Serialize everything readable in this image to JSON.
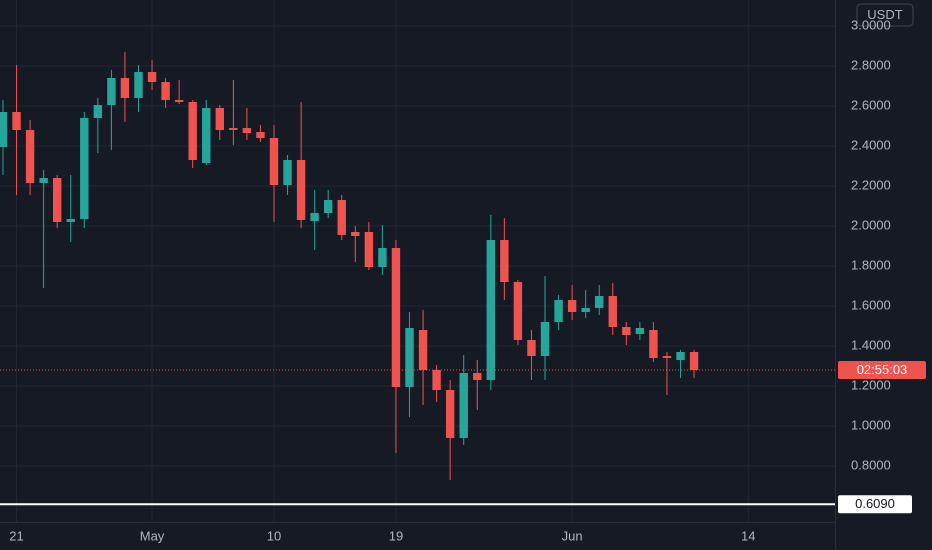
{
  "chart_data": {
    "type": "candlestick",
    "currency": "USDT",
    "countdown": "02:55:03",
    "up_color": "#26a69a",
    "down_color": "#ef5350",
    "x": [
      0,
      1,
      2,
      3,
      4,
      5,
      6,
      7,
      8,
      9,
      10,
      11,
      12,
      13,
      14,
      15,
      16,
      17,
      18,
      19,
      20,
      21,
      22,
      23,
      24,
      25,
      26,
      27,
      28,
      29,
      30,
      31,
      32,
      33,
      34,
      35,
      36,
      37,
      38,
      39,
      40,
      41,
      42,
      43,
      44,
      45,
      46,
      47,
      48,
      49,
      50,
      51
    ],
    "open": [
      2.395,
      2.57,
      2.48,
      2.215,
      2.24,
      2.02,
      2.035,
      2.54,
      2.605,
      2.74,
      2.64,
      2.77,
      2.72,
      2.63,
      2.62,
      2.315,
      2.59,
      2.49,
      2.49,
      2.47,
      2.44,
      2.205,
      2.33,
      2.025,
      2.065,
      2.13,
      1.97,
      1.97,
      1.795,
      1.89,
      1.195,
      1.48,
      1.28,
      1.18,
      0.94,
      1.265,
      1.23,
      1.93,
      1.72,
      1.43,
      1.35,
      1.52,
      1.63,
      1.57,
      1.59,
      1.65,
      1.495,
      1.46,
      1.48,
      1.35,
      1.33,
      1.37
    ],
    "high": [
      2.63,
      2.805,
      2.53,
      2.28,
      2.255,
      2.255,
      2.57,
      2.64,
      2.78,
      2.87,
      2.805,
      2.83,
      2.74,
      2.73,
      2.63,
      2.63,
      2.605,
      2.73,
      2.59,
      2.505,
      2.505,
      2.355,
      2.62,
      2.18,
      2.18,
      2.155,
      2.0,
      2.02,
      2.005,
      1.93,
      1.57,
      1.58,
      1.305,
      1.23,
      1.355,
      1.33,
      2.055,
      2.04,
      1.73,
      1.48,
      1.75,
      1.655,
      1.705,
      1.68,
      1.705,
      1.715,
      1.52,
      1.52,
      1.52,
      1.37,
      1.38,
      1.38
    ],
    "low": [
      2.255,
      2.155,
      2.155,
      1.69,
      1.99,
      1.92,
      1.99,
      2.365,
      2.38,
      2.52,
      2.57,
      2.68,
      2.59,
      2.61,
      2.29,
      2.305,
      2.43,
      2.405,
      2.43,
      2.42,
      2.02,
      2.155,
      1.99,
      1.88,
      2.04,
      1.93,
      1.82,
      1.78,
      1.755,
      0.865,
      1.045,
      1.105,
      1.12,
      0.73,
      0.905,
      1.08,
      1.18,
      1.63,
      1.405,
      1.23,
      1.23,
      1.48,
      1.53,
      1.54,
      1.555,
      1.455,
      1.405,
      1.43,
      1.32,
      1.155,
      1.24,
      1.24
    ],
    "close": [
      2.57,
      2.48,
      2.215,
      2.24,
      2.02,
      2.035,
      2.54,
      2.605,
      2.74,
      2.64,
      2.77,
      2.72,
      2.63,
      2.62,
      2.33,
      2.59,
      2.48,
      2.48,
      2.465,
      2.44,
      2.205,
      2.33,
      2.03,
      2.065,
      2.13,
      1.955,
      1.95,
      1.795,
      1.89,
      1.195,
      1.49,
      1.28,
      1.18,
      0.94,
      1.265,
      1.23,
      1.93,
      1.72,
      1.43,
      1.35,
      1.52,
      1.63,
      1.57,
      1.59,
      1.65,
      1.495,
      1.455,
      1.49,
      1.34,
      1.34,
      1.37,
      1.28
    ],
    "xlim": [
      -0.22,
      61.4
    ],
    "xticks": [
      {
        "value": 1,
        "label": "21"
      },
      {
        "value": 11,
        "label": "May"
      },
      {
        "value": 20,
        "label": "10"
      },
      {
        "value": 29,
        "label": "19"
      },
      {
        "value": 42,
        "label": "Jun"
      },
      {
        "value": 55,
        "label": "14"
      }
    ],
    "ylim": [
      0.52,
      3.13
    ],
    "yticks": [
      {
        "value": 0.8,
        "label": "0.8000"
      },
      {
        "value": 1.0,
        "label": "1.0000"
      },
      {
        "value": 1.2,
        "label": "1.2000"
      },
      {
        "value": 1.4,
        "label": "1.4000"
      },
      {
        "value": 1.6,
        "label": "1.6000"
      },
      {
        "value": 1.8,
        "label": "1.8000"
      },
      {
        "value": 2.0,
        "label": "2.0000"
      },
      {
        "value": 2.2,
        "label": "2.2000"
      },
      {
        "value": 2.4,
        "label": "2.4000"
      },
      {
        "value": 2.6,
        "label": "2.6000"
      },
      {
        "value": 2.8,
        "label": "2.8000"
      },
      {
        "value": 3.0,
        "label": "3.0000"
      }
    ],
    "horizontal_line": {
      "value": 0.609,
      "label": "0.6090",
      "color": "#ffffff"
    },
    "grid": true
  }
}
